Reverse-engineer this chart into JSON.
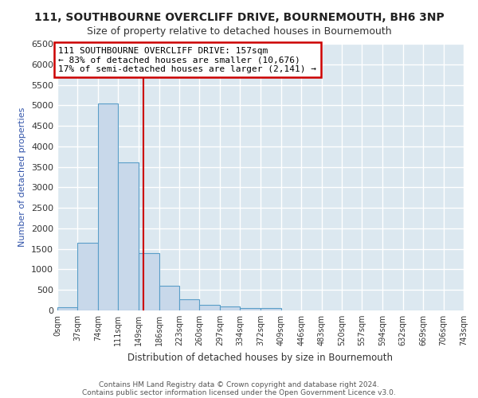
{
  "title1": "111, SOUTHBOURNE OVERCLIFF DRIVE, BOURNEMOUTH, BH6 3NP",
  "title2": "Size of property relative to detached houses in Bournemouth",
  "xlabel": "Distribution of detached houses by size in Bournemouth",
  "ylabel": "Number of detached properties",
  "bin_edges": [
    0,
    37,
    74,
    111,
    149,
    186,
    223,
    260,
    297,
    334,
    372,
    409,
    446,
    483,
    520,
    557,
    594,
    632,
    669,
    706,
    743
  ],
  "bar_heights": [
    75,
    1650,
    5050,
    3600,
    1400,
    600,
    280,
    140,
    90,
    65,
    65,
    0,
    0,
    0,
    0,
    0,
    0,
    0,
    0,
    0
  ],
  "bar_color": "#c8d8ea",
  "bar_edge_color": "#5a9ec8",
  "vline_x": 157,
  "vline_color": "#cc0000",
  "ylim": [
    0,
    6500
  ],
  "yticks": [
    0,
    500,
    1000,
    1500,
    2000,
    2500,
    3000,
    3500,
    4000,
    4500,
    5000,
    5500,
    6000,
    6500
  ],
  "annotation_text": "111 SOUTHBOURNE OVERCLIFF DRIVE: 157sqm\n← 83% of detached houses are smaller (10,676)\n17% of semi-detached houses are larger (2,141) →",
  "annotation_box_color": "#ffffff",
  "annotation_box_edge": "#cc0000",
  "footer1": "Contains HM Land Registry data © Crown copyright and database right 2024.",
  "footer2": "Contains public sector information licensed under the Open Government Licence v3.0.",
  "plot_bg_color": "#dce8f0",
  "fig_bg_color": "#ffffff",
  "grid_color": "#ffffff",
  "title1_fontsize": 10,
  "title2_fontsize": 9,
  "annotation_fontsize": 8
}
